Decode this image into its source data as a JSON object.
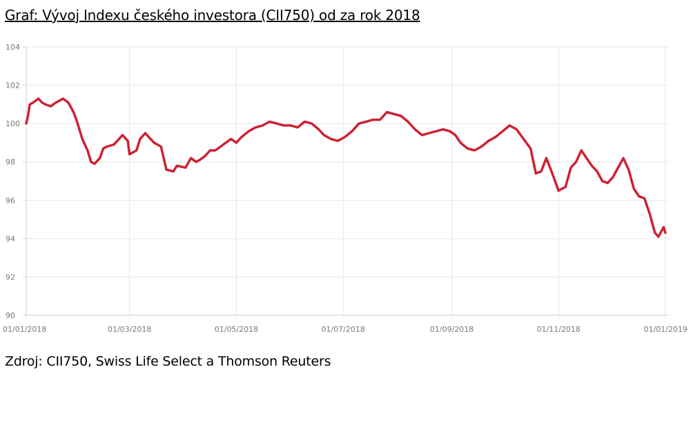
{
  "title": "Graf: Vývoj Indexu českého investora (CII750) od za rok 2018",
  "source": "Zdroj: CII750, Swiss Life Select a Thomson Reuters",
  "chart_data": {
    "type": "line",
    "title": "Graf: Vývoj Indexu českého investora (CII750) od za rok 2018",
    "xlabel": "",
    "ylabel": "",
    "xlim": [
      "2018-01-01",
      "2019-01-01"
    ],
    "ylim": [
      90,
      104
    ],
    "yticks": [
      90,
      92,
      94,
      96,
      98,
      100,
      102,
      104
    ],
    "xticks": [
      "2018-01-01",
      "2018-03-01",
      "2018-05-01",
      "2018-07-01",
      "2018-09-01",
      "2018-11-01",
      "2019-01-01"
    ],
    "xtick_labels": [
      "01/01/2018",
      "01/03/2018",
      "01/05/2018",
      "01/07/2018",
      "01/09/2018",
      "01/11/2018",
      "01/01/2019"
    ],
    "grid": true,
    "legend": "none",
    "line_color": "#cc2233",
    "series": [
      {
        "x": [
          "2018-01-01",
          "2018-01-02",
          "2018-01-03",
          "2018-01-05",
          "2018-01-08",
          "2018-01-10",
          "2018-01-12",
          "2018-01-15",
          "2018-01-18",
          "2018-01-22",
          "2018-01-25",
          "2018-01-28",
          "2018-01-30",
          "2018-02-02",
          "2018-02-05",
          "2018-02-07",
          "2018-02-09",
          "2018-02-12",
          "2018-02-14",
          "2018-02-16",
          "2018-02-20",
          "2018-02-22",
          "2018-02-25",
          "2018-02-28",
          "2018-03-01",
          "2018-03-05",
          "2018-03-07",
          "2018-03-10",
          "2018-03-13",
          "2018-03-15",
          "2018-03-19",
          "2018-03-22",
          "2018-03-26",
          "2018-03-28",
          "2018-04-02",
          "2018-04-05",
          "2018-04-08",
          "2018-04-10",
          "2018-04-13",
          "2018-04-16",
          "2018-04-19",
          "2018-04-22",
          "2018-04-25",
          "2018-04-28",
          "2018-05-01",
          "2018-05-04",
          "2018-05-08",
          "2018-05-12",
          "2018-05-16",
          "2018-05-20",
          "2018-05-24",
          "2018-05-28",
          "2018-06-01",
          "2018-06-05",
          "2018-06-09",
          "2018-06-13",
          "2018-06-17",
          "2018-06-20",
          "2018-06-24",
          "2018-06-28",
          "2018-07-02",
          "2018-07-06",
          "2018-07-10",
          "2018-07-14",
          "2018-07-18",
          "2018-07-22",
          "2018-07-26",
          "2018-07-30",
          "2018-08-03",
          "2018-08-07",
          "2018-08-11",
          "2018-08-15",
          "2018-08-19",
          "2018-08-23",
          "2018-08-27",
          "2018-08-31",
          "2018-09-03",
          "2018-09-06",
          "2018-09-10",
          "2018-09-14",
          "2018-09-18",
          "2018-09-22",
          "2018-09-26",
          "2018-09-30",
          "2018-10-04",
          "2018-10-08",
          "2018-10-12",
          "2018-10-16",
          "2018-10-19",
          "2018-10-22",
          "2018-10-25",
          "2018-10-28",
          "2018-11-01",
          "2018-11-05",
          "2018-11-08",
          "2018-11-11",
          "2018-11-14",
          "2018-11-17",
          "2018-11-20",
          "2018-11-23",
          "2018-11-26",
          "2018-11-29",
          "2018-12-02",
          "2018-12-05",
          "2018-12-08",
          "2018-12-11",
          "2018-12-14",
          "2018-12-17",
          "2018-12-20",
          "2018-12-23",
          "2018-12-26",
          "2018-12-28",
          "2018-12-31",
          "2019-01-01"
        ],
        "y": [
          100.0,
          100.4,
          101.0,
          101.1,
          101.3,
          101.1,
          101.0,
          100.9,
          101.1,
          101.3,
          101.1,
          100.6,
          100.1,
          99.2,
          98.6,
          98.0,
          97.9,
          98.2,
          98.7,
          98.8,
          98.9,
          99.1,
          99.4,
          99.1,
          98.4,
          98.6,
          99.2,
          99.5,
          99.2,
          99.0,
          98.8,
          97.6,
          97.5,
          97.8,
          97.7,
          98.2,
          98.0,
          98.1,
          98.3,
          98.6,
          98.6,
          98.8,
          99.0,
          99.2,
          99.0,
          99.3,
          99.6,
          99.8,
          99.9,
          100.1,
          100.0,
          99.9,
          99.9,
          99.8,
          100.1,
          100.0,
          99.7,
          99.4,
          99.2,
          99.1,
          99.3,
          99.6,
          100.0,
          100.1,
          100.2,
          100.2,
          100.6,
          100.5,
          100.4,
          100.1,
          99.7,
          99.4,
          99.5,
          99.6,
          99.7,
          99.6,
          99.4,
          99.0,
          98.7,
          98.6,
          98.8,
          99.1,
          99.3,
          99.6,
          99.9,
          99.7,
          99.2,
          98.7,
          97.4,
          97.5,
          98.2,
          97.5,
          96.5,
          96.7,
          97.7,
          98.0,
          98.6,
          98.2,
          97.8,
          97.5,
          97.0,
          96.9,
          97.2,
          97.7,
          98.2,
          97.6,
          96.6,
          96.2,
          96.1,
          95.3,
          94.3,
          94.1,
          94.6,
          94.3
        ]
      }
    ]
  }
}
